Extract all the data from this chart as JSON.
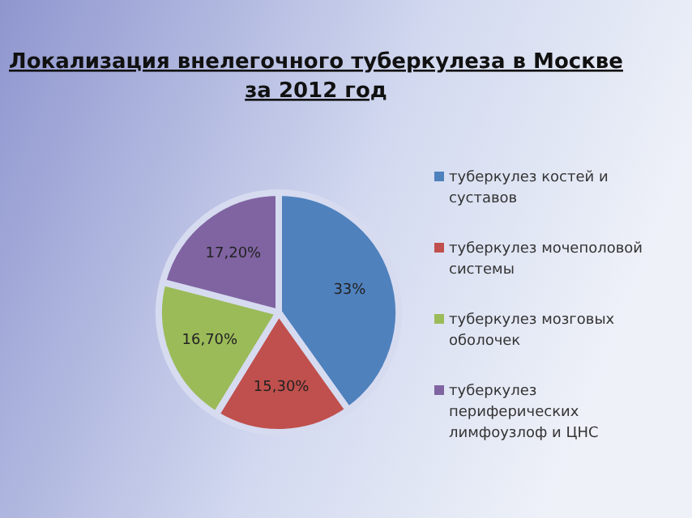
{
  "chart_data": {
    "type": "pie",
    "title": "Локализация внелегочного туберкулеза в Москве",
    "subtitle": "за 2012 год",
    "categories": [
      "туберкулез костей и суставов",
      "туберкулез мочеполовой системы",
      "туберкулез мозговых оболочек",
      "туберкулез периферических лимфоузлоф и ЦНС"
    ],
    "values": [
      33,
      15.3,
      16.7,
      17.2
    ],
    "value_labels": [
      "33%",
      "15,30%",
      "16,70%",
      "17,20%"
    ],
    "colors": [
      "#4f81bd",
      "#c0504d",
      "#9bbb59",
      "#8064a2"
    ],
    "legend": "right"
  }
}
